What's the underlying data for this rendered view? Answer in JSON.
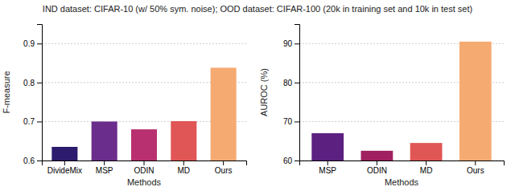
{
  "chart_data": [
    {
      "type": "bar",
      "title": "IND dataset: CIFAR-10 (w/ 50% sym. noise); OOD dataset: CIFAR-100 (20k in training set and 10k in test set)",
      "categories": [
        "DivideMix",
        "MSP",
        "ODIN",
        "MD",
        "Ours"
      ],
      "values": [
        0.635,
        0.7,
        0.68,
        0.701,
        0.838
      ],
      "colors": [
        "#2d1b6e",
        "#6b2d8b",
        "#b83070",
        "#e05555",
        "#f5aa72"
      ],
      "ylabel": "F-measure",
      "xlabel": "Methods",
      "ylim": [
        0.6,
        0.95
      ],
      "yticks": [
        0.6,
        0.7,
        0.8,
        0.9
      ],
      "grid": true
    },
    {
      "type": "bar",
      "categories": [
        "MSP",
        "ODIN",
        "MD",
        "Ours"
      ],
      "values": [
        67.0,
        62.5,
        64.5,
        90.5
      ],
      "colors": [
        "#5c2080",
        "#a02060",
        "#e05555",
        "#f5aa72"
      ],
      "ylabel": "AUROC (%)",
      "xlabel": "Methods",
      "ylim": [
        60,
        95
      ],
      "yticks": [
        60,
        70,
        80,
        90
      ],
      "grid": true
    }
  ]
}
